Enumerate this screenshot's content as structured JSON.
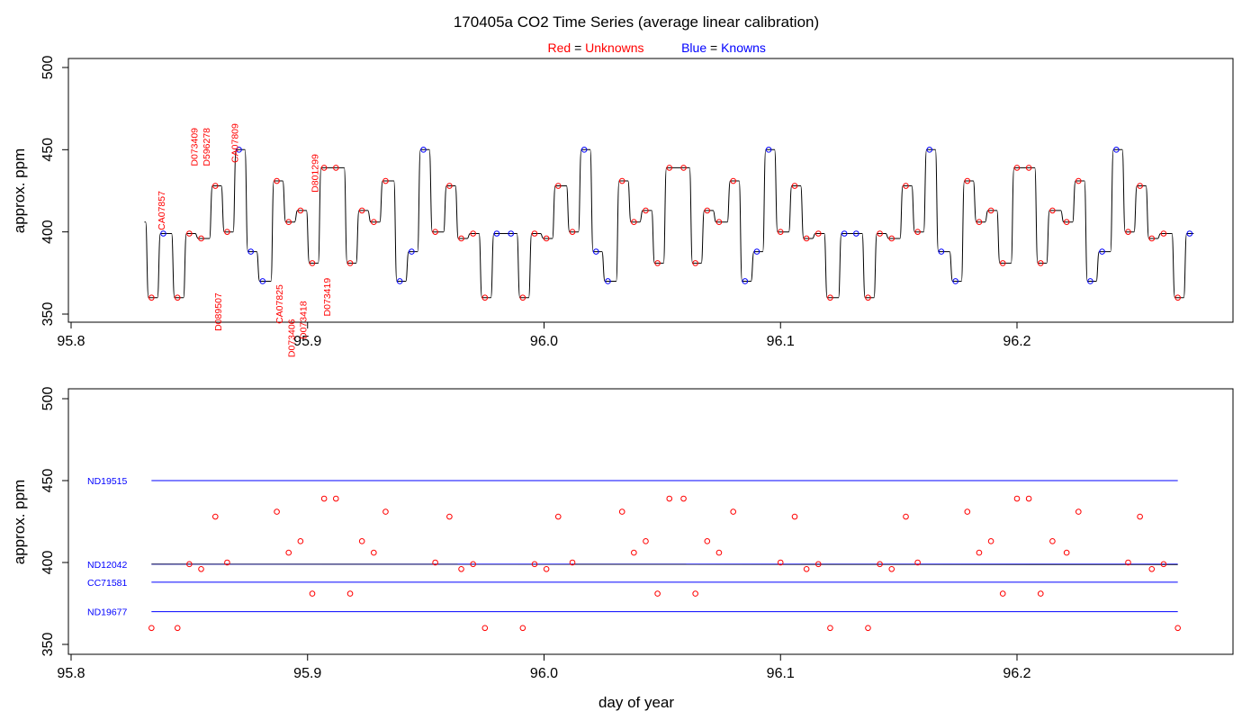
{
  "chart_data": {
    "type": "line",
    "title": "170405a   CO2 Time Series (average linear calibration)",
    "legend": {
      "unknowns": {
        "color_word": "Red",
        "equals": "=",
        "label": "Unknowns",
        "color": "#ff0000"
      },
      "knowns": {
        "color_word": "Blue",
        "equals": "=",
        "label": "Knowns",
        "color": "#0000ff"
      },
      "placement": "top-center"
    },
    "xlabel": "day of year",
    "xlim": [
      95.8,
      96.3
    ],
    "xticks": [
      "95.8",
      "95.9",
      "96.0",
      "96.1",
      "96.2"
    ],
    "colors": {
      "trace": "#000000",
      "unknown": "#ff0000",
      "known": "#0000ff"
    },
    "panels": [
      {
        "ylabel": "approx. ppm",
        "ylim": [
          347,
          502
        ],
        "yticks": [
          "350",
          "400",
          "450",
          "500"
        ],
        "trace_start": [
          95.831,
          406
        ],
        "trace": [
          [
            95.834,
            360
          ],
          [
            95.839,
            399
          ],
          [
            95.845,
            360
          ],
          [
            95.85,
            399
          ],
          [
            95.855,
            396
          ],
          [
            95.861,
            428
          ],
          [
            95.866,
            400
          ],
          [
            95.871,
            450
          ],
          [
            95.876,
            388
          ],
          [
            95.881,
            370
          ],
          [
            95.887,
            431
          ],
          [
            95.892,
            406
          ],
          [
            95.897,
            413
          ],
          [
            95.902,
            381
          ],
          [
            95.907,
            439
          ],
          [
            95.912,
            439
          ],
          [
            95.918,
            381
          ],
          [
            95.923,
            413
          ],
          [
            95.928,
            406
          ],
          [
            95.933,
            431
          ],
          [
            95.939,
            370
          ],
          [
            95.944,
            388
          ],
          [
            95.949,
            450
          ],
          [
            95.954,
            400
          ],
          [
            95.96,
            428
          ],
          [
            95.965,
            396
          ],
          [
            95.97,
            399
          ],
          [
            95.975,
            360
          ],
          [
            95.98,
            399
          ],
          [
            95.986,
            399
          ],
          [
            95.991,
            360
          ],
          [
            95.996,
            399
          ],
          [
            96.001,
            396
          ],
          [
            96.006,
            428
          ],
          [
            96.012,
            400
          ],
          [
            96.017,
            450
          ],
          [
            96.022,
            388
          ],
          [
            96.027,
            370
          ],
          [
            96.033,
            431
          ],
          [
            96.038,
            406
          ],
          [
            96.043,
            413
          ],
          [
            96.048,
            381
          ],
          [
            96.053,
            439
          ],
          [
            96.059,
            439
          ],
          [
            96.064,
            381
          ],
          [
            96.069,
            413
          ],
          [
            96.074,
            406
          ],
          [
            96.08,
            431
          ],
          [
            96.085,
            370
          ],
          [
            96.09,
            388
          ],
          [
            96.095,
            450
          ],
          [
            96.1,
            400
          ],
          [
            96.106,
            428
          ],
          [
            96.111,
            396
          ],
          [
            96.116,
            399
          ],
          [
            96.121,
            360
          ],
          [
            96.127,
            399
          ],
          [
            96.132,
            399
          ],
          [
            96.137,
            360
          ],
          [
            96.142,
            399
          ],
          [
            96.147,
            396
          ],
          [
            96.153,
            428
          ],
          [
            96.158,
            400
          ],
          [
            96.163,
            450
          ],
          [
            96.168,
            388
          ],
          [
            96.174,
            370
          ],
          [
            96.179,
            431
          ],
          [
            96.184,
            406
          ],
          [
            96.189,
            413
          ],
          [
            96.194,
            381
          ],
          [
            96.2,
            439
          ],
          [
            96.205,
            439
          ],
          [
            96.21,
            381
          ],
          [
            96.215,
            413
          ],
          [
            96.221,
            406
          ],
          [
            96.226,
            431
          ],
          [
            96.231,
            370
          ],
          [
            96.236,
            388
          ],
          [
            96.242,
            450
          ],
          [
            96.247,
            400
          ],
          [
            96.252,
            428
          ],
          [
            96.257,
            396
          ],
          [
            96.262,
            399
          ],
          [
            96.268,
            360
          ],
          [
            96.273,
            399
          ]
        ],
        "known_levels": [
          450,
          399,
          388,
          370
        ],
        "annotations": [
          {
            "text": "CA07857",
            "x": 95.838,
            "y": 401,
            "anchor": "start"
          },
          {
            "text": "D073409",
            "x": 95.852,
            "y": 440,
            "anchor": "start"
          },
          {
            "text": "D596278",
            "x": 95.857,
            "y": 440,
            "anchor": "start"
          },
          {
            "text": "CA07809",
            "x": 95.869,
            "y": 442,
            "anchor": "start"
          },
          {
            "text": "D089507",
            "x": 95.862,
            "y": 363,
            "anchor": "end"
          },
          {
            "text": "CA07825",
            "x": 95.888,
            "y": 368,
            "anchor": "end"
          },
          {
            "text": "D073406",
            "x": 95.893,
            "y": 347,
            "anchor": "end"
          },
          {
            "text": "D073418",
            "x": 95.898,
            "y": 358,
            "anchor": "end"
          },
          {
            "text": "D801299",
            "x": 95.903,
            "y": 424,
            "anchor": "start"
          },
          {
            "text": "D073419",
            "x": 95.908,
            "y": 372,
            "anchor": "end"
          }
        ]
      },
      {
        "ylabel": "approx. ppm",
        "ylim": [
          342,
          508
        ],
        "yticks": [
          "350",
          "400",
          "450",
          "500"
        ],
        "reference_lines": [
          {
            "name": "ND19515",
            "value": 450,
            "color": "#0000ff"
          },
          {
            "name": "ND12042",
            "value": 399,
            "color": "#0000ff",
            "overlay_color": "#000000"
          },
          {
            "name": "CC71581",
            "value": 388,
            "color": "#0000ff"
          },
          {
            "name": "ND19677",
            "value": 370,
            "color": "#0000ff"
          }
        ],
        "reference_x": [
          95.834,
          96.268
        ]
      }
    ]
  }
}
